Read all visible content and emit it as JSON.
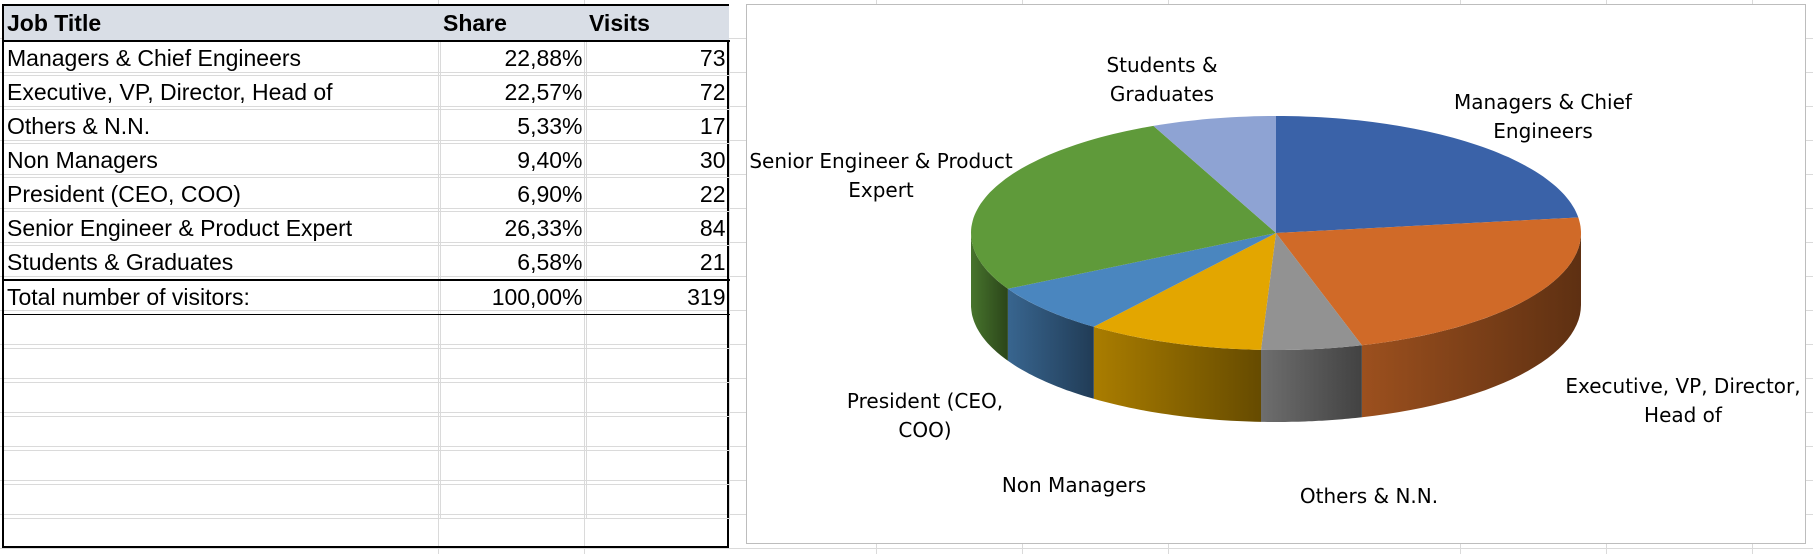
{
  "table": {
    "headers": [
      "Job Title",
      "Share",
      "Visits"
    ],
    "rows": [
      {
        "title": "Managers & Chief Engineers",
        "share": "22,88%",
        "visits": "73"
      },
      {
        "title": "Executive, VP, Director, Head of",
        "share": "22,57%",
        "visits": "72"
      },
      {
        "title": "Others & N.N.",
        "share": "5,33%",
        "visits": "17"
      },
      {
        "title": "Non Managers",
        "share": "9,40%",
        "visits": "30"
      },
      {
        "title": "President  (CEO, COO)",
        "share": "6,90%",
        "visits": "22"
      },
      {
        "title": "Senior Engineer & Product Expert",
        "share": "26,33%",
        "visits": "84"
      },
      {
        "title": "Students & Graduates",
        "share": "6,58%",
        "visits": "21"
      }
    ],
    "total": {
      "title": "Total number of visitors:",
      "share": "100,00%",
      "visits": "319"
    }
  },
  "chart_data": {
    "type": "pie",
    "style": "3d-pie",
    "categories": [
      "Managers & Chief Engineers",
      "Executive, VP, Director, Head of",
      "Others & N.N.",
      "Non Managers",
      "President  (CEO, COO)",
      "Senior Engineer & Product Expert",
      "Students & Graduates"
    ],
    "values": [
      73,
      72,
      17,
      30,
      22,
      84,
      21
    ],
    "colors": [
      "#3a62a8",
      "#d06a28",
      "#929292",
      "#e3a600",
      "#4a86bf",
      "#5f9a3a",
      "#8ea3d3"
    ],
    "title": "",
    "legend": "none",
    "data_labels": "category-name"
  }
}
